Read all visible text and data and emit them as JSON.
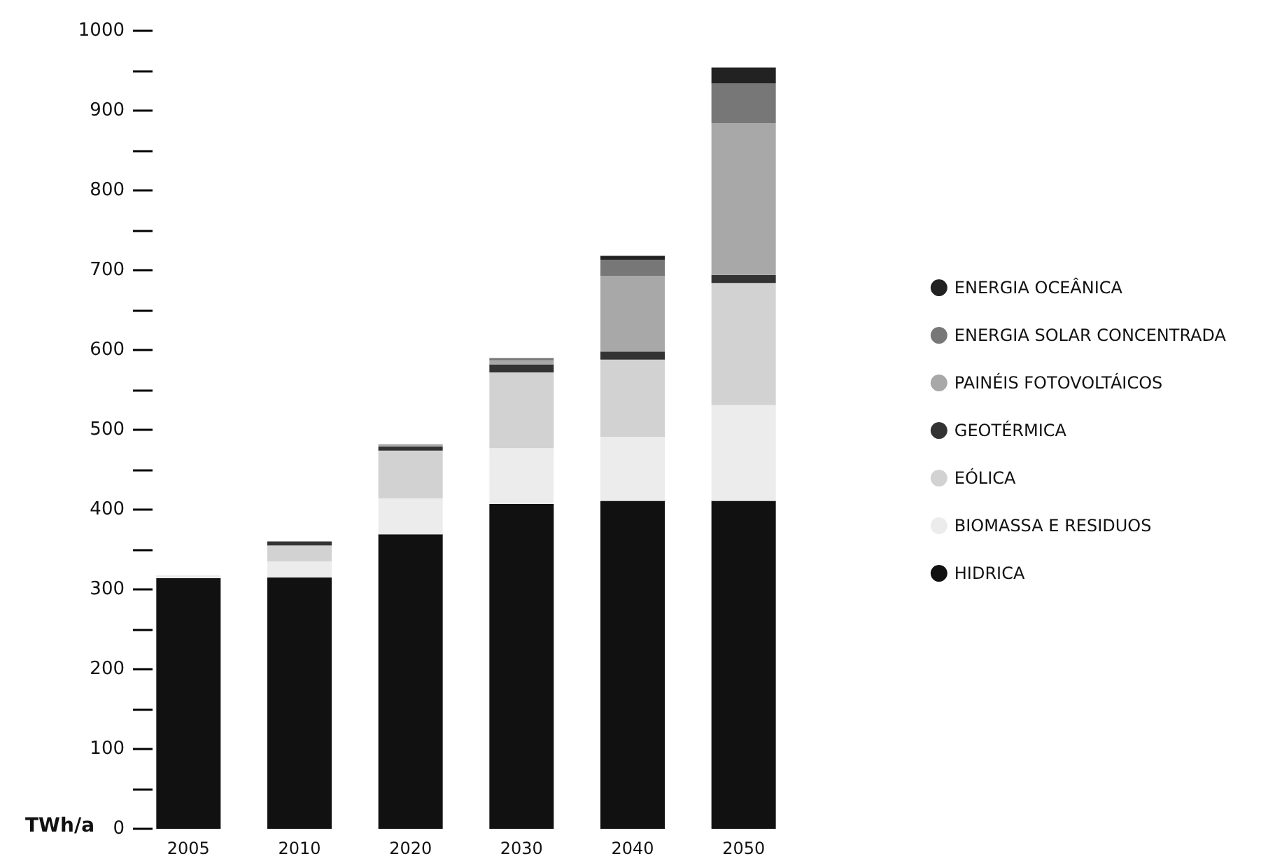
{
  "chart_data": {
    "type": "bar",
    "stacked": true,
    "ylabel": "TWh/a",
    "categories": [
      "2005",
      "2010",
      "2020",
      "2030",
      "2040",
      "2050"
    ],
    "series": [
      {
        "name": "HIDRICA",
        "color": "#111111",
        "values": [
          314,
          315,
          369,
          407,
          411,
          411
        ]
      },
      {
        "name": "BIOMASSA E RESIDUOS",
        "color": "#ececec",
        "values": [
          4,
          20,
          45,
          70,
          80,
          120
        ]
      },
      {
        "name": "EÓLICA",
        "color": "#d2d2d2",
        "values": [
          null,
          20,
          60,
          95,
          97,
          153
        ]
      },
      {
        "name": "GEOTÉRMICA",
        "color": "#333333",
        "values": [
          0,
          5,
          5,
          10,
          10,
          10
        ]
      },
      {
        "name": "PAINÉIS FOTOVOLTÁICOS",
        "color": "#a8a8a8",
        "values": [
          0,
          null,
          3,
          5,
          95,
          190
        ]
      },
      {
        "name": "ENERGIA SOLAR CONCENTRADA",
        "color": "#777777",
        "values": [
          0,
          0,
          0,
          3,
          20,
          50
        ]
      },
      {
        "name": "ENERGIA OCEÂNICA",
        "color": "#222222",
        "values": [
          0,
          0,
          0,
          0,
          5,
          20
        ]
      }
    ],
    "ylim": [
      0,
      1000
    ],
    "yticks": [
      0,
      {
        "value": 50,
        "label": null
      },
      100,
      {
        "value": 150,
        "label": null
      },
      200,
      {
        "value": 250,
        "label": null
      },
      300,
      {
        "value": 350,
        "label": null
      },
      400,
      {
        "value": 450,
        "label": null
      },
      500,
      {
        "value": 550,
        "label": null
      },
      600,
      {
        "value": 650,
        "label": null
      },
      700,
      {
        "value": 750,
        "label": null
      },
      800,
      {
        "value": 850,
        "label": null
      },
      900,
      {
        "value": 950,
        "label": null
      },
      1000
    ],
    "grid": false,
    "legend": "right"
  }
}
